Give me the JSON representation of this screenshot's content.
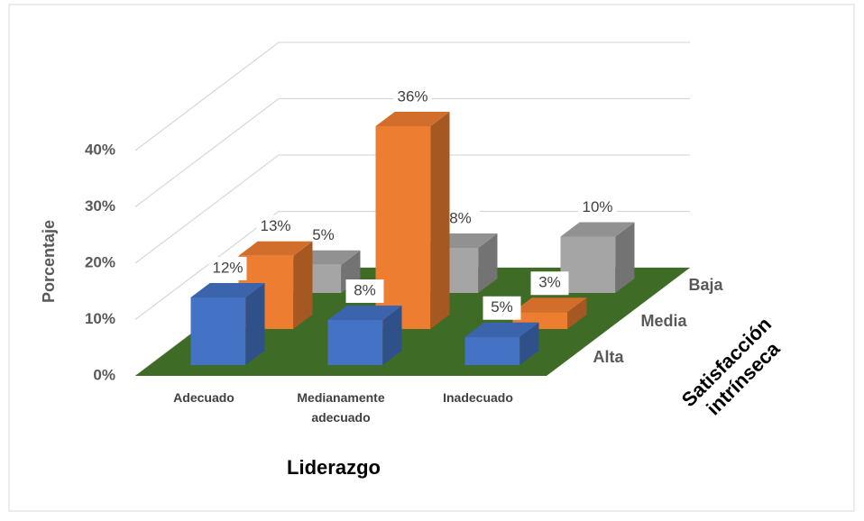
{
  "chart_data": {
    "type": "bar3d",
    "categories": [
      "Adecuado",
      "Medianamente adecuado",
      "Inadecuado"
    ],
    "x_label": "Liderazgo",
    "y_label": "Porcentaje",
    "z_label": "Satisfacción intrínseca",
    "series": [
      {
        "name": "Alta",
        "color": "#4472c4",
        "values": [
          12,
          8,
          5
        ],
        "value_labels": [
          "12%",
          "8%",
          "5%"
        ]
      },
      {
        "name": "Media",
        "color": "#ed7d31",
        "values": [
          13,
          36,
          3
        ],
        "value_labels": [
          "13%",
          "36%",
          "3%"
        ]
      },
      {
        "name": "Baja",
        "color": "#a5a5a5",
        "values": [
          5,
          8,
          10
        ],
        "value_labels": [
          "5%",
          "8%",
          "10%"
        ]
      }
    ],
    "floor_color": "#3e6b25",
    "ylim": [
      0,
      40
    ],
    "yticks": [
      {
        "value": 0,
        "label": "0%"
      },
      {
        "value": 10,
        "label": "10%"
      },
      {
        "value": 20,
        "label": "20%"
      },
      {
        "value": 30,
        "label": "30%"
      },
      {
        "value": 40,
        "label": "40%"
      }
    ],
    "grid": true
  }
}
